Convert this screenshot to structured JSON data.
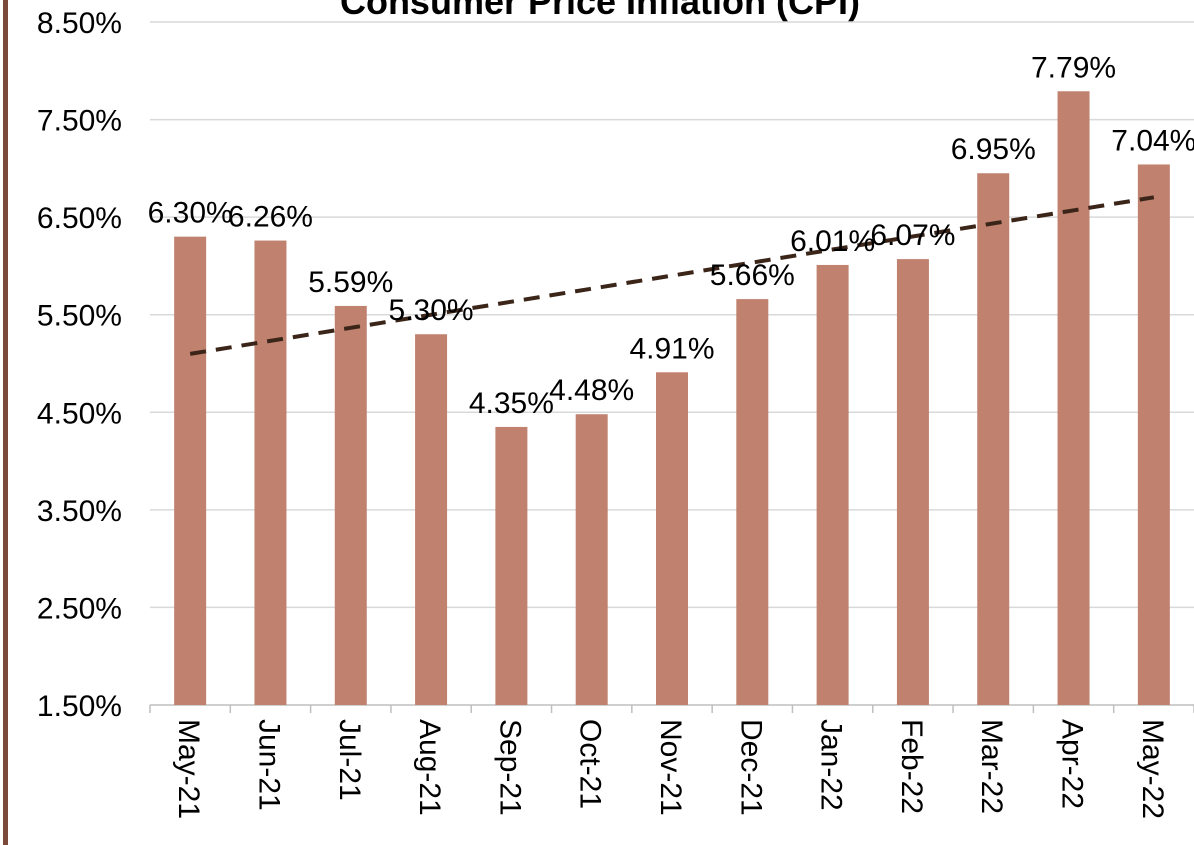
{
  "chart_data": {
    "type": "bar",
    "title": "Consumer Price Inflation (CPI)",
    "categories": [
      "May-21",
      "Jun-21",
      "Jul-21",
      "Aug-21",
      "Sep-21",
      "Oct-21",
      "Nov-21",
      "Dec-21",
      "Jan-22",
      "Feb-22",
      "Mar-22",
      "Apr-22",
      "May-22"
    ],
    "values": [
      6.3,
      6.26,
      5.59,
      5.3,
      4.35,
      4.48,
      4.91,
      5.66,
      6.01,
      6.07,
      6.95,
      7.79,
      7.04
    ],
    "value_labels": [
      "6.30%",
      "6.26%",
      "5.59%",
      "5.30%",
      "4.35%",
      "4.48%",
      "4.91%",
      "5.66%",
      "6.01%",
      "6.07%",
      "6.95%",
      "7.79%",
      "7.04%"
    ],
    "color": "#c0826f",
    "ylim": [
      1.5,
      8.5
    ],
    "yticks": [
      {
        "value": 1.5,
        "label": "1.50%"
      },
      {
        "value": 2.5,
        "label": "2.50%"
      },
      {
        "value": 3.5,
        "label": "3.50%"
      },
      {
        "value": 4.5,
        "label": "4.50%"
      },
      {
        "value": 5.5,
        "label": "5.50%"
      },
      {
        "value": 6.5,
        "label": "6.50%"
      },
      {
        "value": 7.5,
        "label": "7.50%"
      },
      {
        "value": 8.5,
        "label": "8.50%"
      }
    ],
    "grid": true,
    "trendline": "linear",
    "trendline_color": "#3b2519"
  }
}
